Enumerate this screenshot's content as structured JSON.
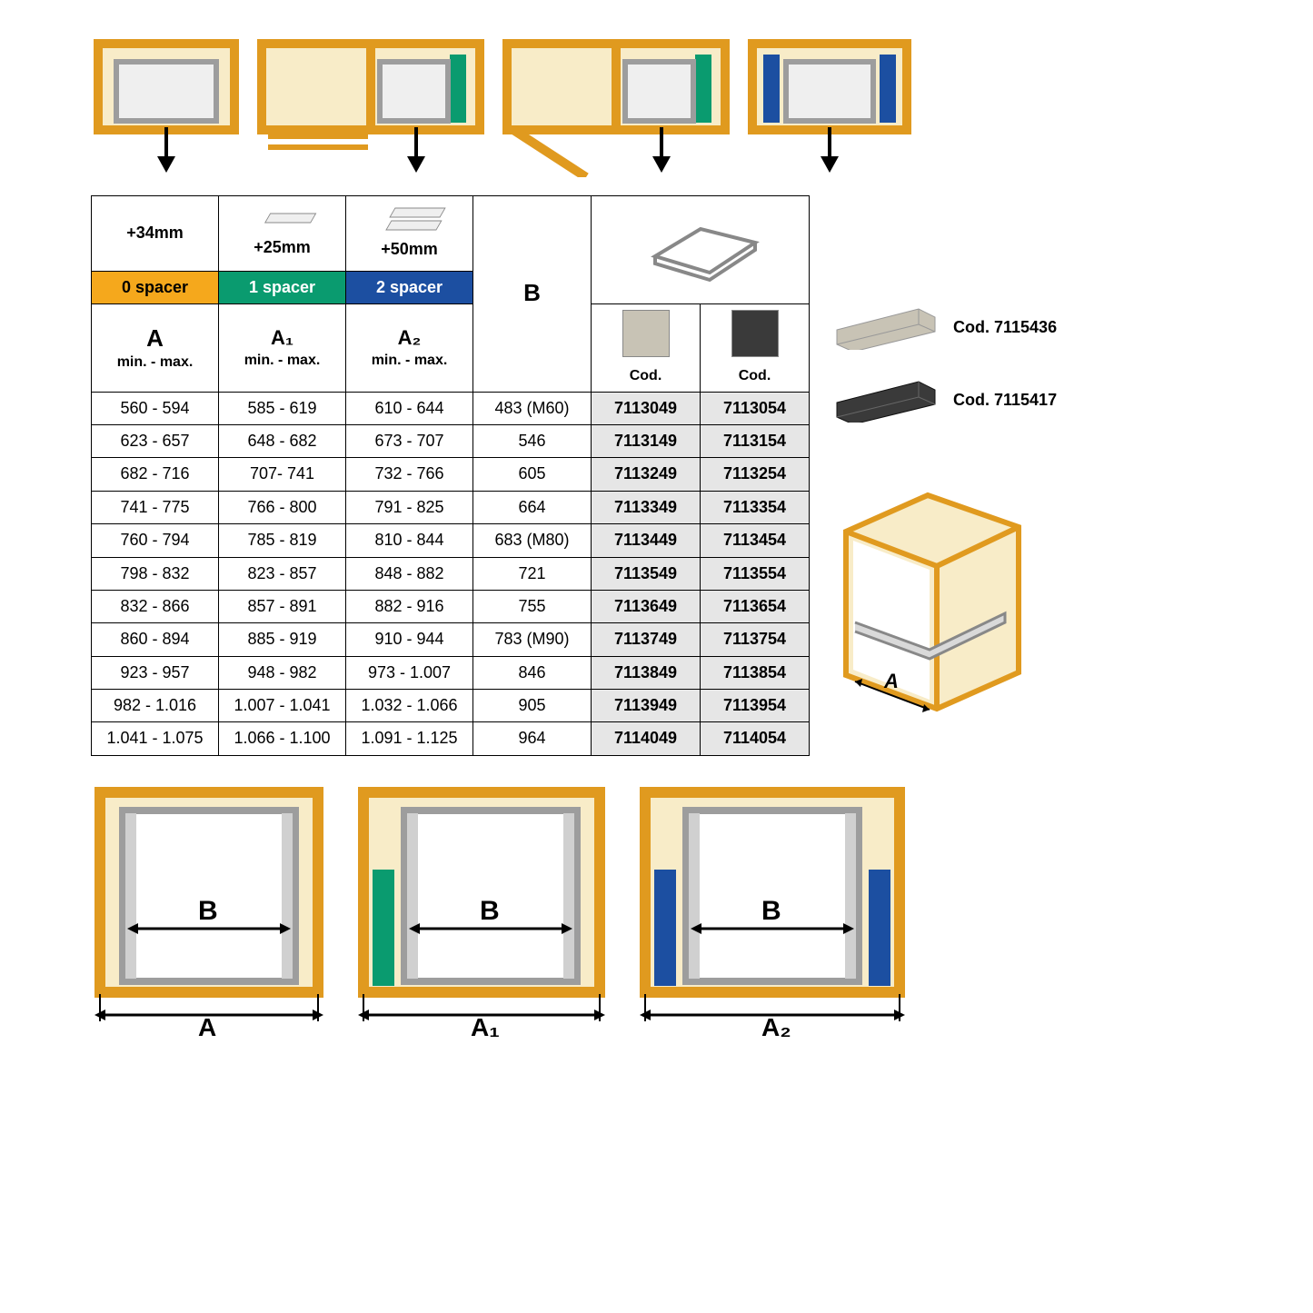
{
  "colors": {
    "cabinet_fill": "#f8ecc8",
    "cabinet_stroke": "#e09a1f",
    "rail_fill": "#efefef",
    "rail_stroke": "#9d9d9d",
    "spacer_green": "#0a9b6f",
    "spacer_blue": "#1c4fa1",
    "arrow": "#000000",
    "header_orange": "#f5a81c",
    "header_green": "#0a9b6f",
    "header_blue": "#1c4fa1",
    "code_bg": "#e6e6e6",
    "swatch_light": "#c8c3b5",
    "swatch_dark": "#3a3a3a"
  },
  "table": {
    "header_offsets": {
      "a": "+34mm",
      "a1": "+25mm",
      "a2": "+50mm"
    },
    "spacer_labels": {
      "a": "0 spacer",
      "a1": "1 spacer",
      "a2": "2 spacer"
    },
    "col_letters": {
      "a": "A",
      "a1": "A₁",
      "a2": "A₂",
      "b": "B"
    },
    "minmax": "min. - max.",
    "cod": "Cod.",
    "rows": [
      {
        "a": "560 - 594",
        "a1": "585 - 619",
        "a2": "610 - 644",
        "b": "483 (M60)",
        "c1": "7113049",
        "c2": "7113054"
      },
      {
        "a": "623 - 657",
        "a1": "648 - 682",
        "a2": "673 - 707",
        "b": "546",
        "c1": "7113149",
        "c2": "7113154"
      },
      {
        "a": "682 - 716",
        "a1": "707- 741",
        "a2": "732 - 766",
        "b": "605",
        "c1": "7113249",
        "c2": "7113254"
      },
      {
        "a": "741 - 775",
        "a1": "766 - 800",
        "a2": "791 - 825",
        "b": "664",
        "c1": "7113349",
        "c2": "7113354"
      },
      {
        "a": "760 - 794",
        "a1": "785 - 819",
        "a2": "810 - 844",
        "b": "683 (M80)",
        "c1": "7113449",
        "c2": "7113454"
      },
      {
        "a": "798 - 832",
        "a1": "823 - 857",
        "a2": "848 - 882",
        "b": "721",
        "c1": "7113549",
        "c2": "7113554"
      },
      {
        "a": "832 - 866",
        "a1": "857 - 891",
        "a2": "882 - 916",
        "b": "755",
        "c1": "7113649",
        "c2": "7113654"
      },
      {
        "a": "860 - 894",
        "a1": "885 - 919",
        "a2": "910 - 944",
        "b": "783 (M90)",
        "c1": "7113749",
        "c2": "7113754"
      },
      {
        "a": "923 - 957",
        "a1": "948 - 982",
        "a2": "973 - 1.007",
        "b": "846",
        "c1": "7113849",
        "c2": "7113854"
      },
      {
        "a": "982 - 1.016",
        "a1": "1.007 - 1.041",
        "a2": "1.032 - 1.066",
        "b": "905",
        "c1": "7113949",
        "c2": "7113954"
      },
      {
        "a": "1.041 - 1.075",
        "a1": "1.066 - 1.100",
        "a2": "1.091 - 1.125",
        "b": "964",
        "c1": "7114049",
        "c2": "7114054"
      }
    ]
  },
  "side": {
    "code1": "Cod. 7115436",
    "code2": "Cod. 7115417"
  },
  "bottom": {
    "B": "B",
    "A": "A",
    "A1": "A₁",
    "A2": "A₂"
  }
}
